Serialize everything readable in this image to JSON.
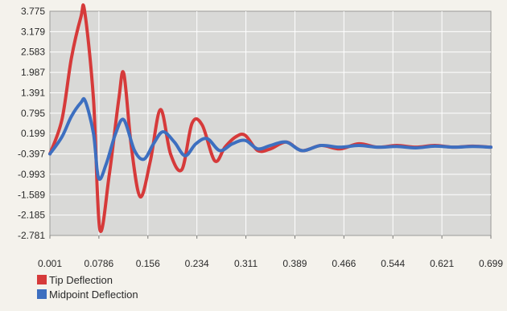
{
  "chart_data": {
    "type": "line",
    "xlabel": "",
    "ylabel": "",
    "x_ticks": [
      "0.001",
      "0.0786",
      "0.156",
      "0.234",
      "0.311",
      "0.389",
      "0.466",
      "0.544",
      "0.621",
      "0.699"
    ],
    "y_ticks": [
      "3.775",
      "3.179",
      "2.583",
      "1.987",
      "1.391",
      "0.795",
      "0.199",
      "-0.397",
      "-0.993",
      "-1.589",
      "-2.185",
      "-2.781"
    ],
    "xlim": [
      0.001,
      0.699
    ],
    "ylim": [
      -2.781,
      3.775
    ],
    "grid": true,
    "legend_position": "bottom-left",
    "series": [
      {
        "name": "Tip Deflection",
        "color": "#d63a3a",
        "x": [
          0.001,
          0.02,
          0.035,
          0.05,
          0.056,
          0.07,
          0.08,
          0.095,
          0.11,
          0.118,
          0.13,
          0.144,
          0.16,
          0.176,
          0.192,
          0.21,
          0.226,
          0.242,
          0.262,
          0.278,
          0.295,
          0.31,
          0.33,
          0.35,
          0.375,
          0.4,
          0.43,
          0.46,
          0.49,
          0.52,
          0.55,
          0.58,
          0.61,
          0.64,
          0.67,
          0.699
        ],
        "y": [
          -0.397,
          0.6,
          2.4,
          3.6,
          3.775,
          1.2,
          -2.6,
          -1.0,
          1.2,
          1.95,
          -0.2,
          -1.65,
          -0.6,
          0.9,
          -0.4,
          -0.85,
          0.5,
          0.45,
          -0.6,
          -0.2,
          0.1,
          0.15,
          -0.3,
          -0.25,
          -0.05,
          -0.3,
          -0.15,
          -0.25,
          -0.1,
          -0.2,
          -0.15,
          -0.2,
          -0.15,
          -0.2,
          -0.17,
          -0.2
        ]
      },
      {
        "name": "Midpoint Deflection",
        "color": "#3d6fc0",
        "x": [
          0.001,
          0.02,
          0.035,
          0.05,
          0.057,
          0.07,
          0.078,
          0.09,
          0.105,
          0.118,
          0.135,
          0.15,
          0.165,
          0.18,
          0.198,
          0.215,
          0.232,
          0.25,
          0.27,
          0.29,
          0.31,
          0.33,
          0.35,
          0.375,
          0.4,
          0.43,
          0.46,
          0.49,
          0.52,
          0.55,
          0.58,
          0.61,
          0.64,
          0.67,
          0.699
        ],
        "y": [
          -0.397,
          0.1,
          0.7,
          1.1,
          1.15,
          0.2,
          -1.1,
          -0.7,
          0.2,
          0.6,
          -0.3,
          -0.55,
          -0.1,
          0.25,
          -0.05,
          -0.45,
          -0.1,
          0.05,
          -0.3,
          -0.1,
          0.0,
          -0.25,
          -0.15,
          -0.05,
          -0.3,
          -0.15,
          -0.2,
          -0.15,
          -0.2,
          -0.18,
          -0.22,
          -0.17,
          -0.2,
          -0.18,
          -0.2
        ]
      }
    ]
  }
}
